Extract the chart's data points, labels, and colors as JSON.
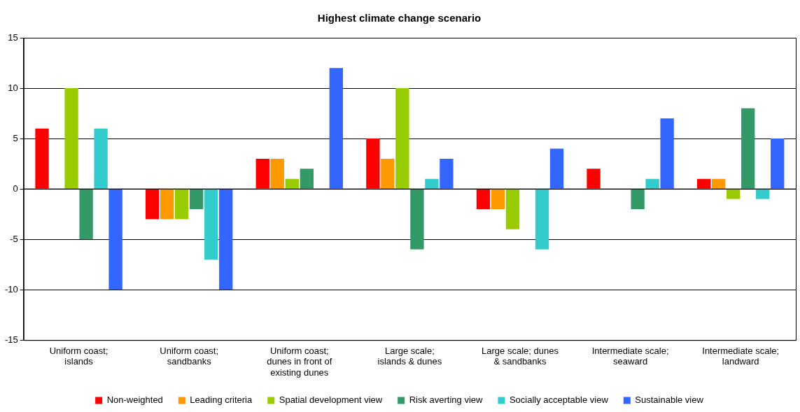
{
  "chart_data": {
    "type": "bar",
    "title": "Highest climate change scenario",
    "categories": [
      "Uniform coast; islands",
      "Uniform coast; sandbanks",
      "Uniform coast; dunes in front of existing dunes",
      "Large scale; islands & dunes",
      "Large scale; dunes & sandbanks",
      "Intermediate scale; seaward",
      "Intermediate scale; landward"
    ],
    "series": [
      {
        "name": "Non-weighted",
        "color": "#ff0000",
        "values": [
          6,
          -3,
          3,
          5,
          -2,
          2,
          1
        ]
      },
      {
        "name": "Leading criteria",
        "color": "#ff9900",
        "values": [
          0,
          -3,
          3,
          3,
          -2,
          0,
          1
        ]
      },
      {
        "name": "Spatial development view",
        "color": "#99cc00",
        "values": [
          10,
          -3,
          1,
          10,
          -4,
          0,
          -1
        ]
      },
      {
        "name": "Risk averting view",
        "color": "#339966",
        "values": [
          -5,
          -2,
          2,
          -6,
          0,
          -2,
          8
        ]
      },
      {
        "name": "Socially acceptable view",
        "color": "#33cccc",
        "values": [
          6,
          -7,
          0,
          1,
          -6,
          1,
          -1
        ]
      },
      {
        "name": "Sustainable view",
        "color": "#3366ff",
        "values": [
          -10,
          -10,
          12,
          3,
          4,
          7,
          5
        ]
      }
    ],
    "ylim": [
      -15,
      15
    ],
    "yticks": [
      -15,
      -10,
      -5,
      0,
      5,
      10,
      15
    ],
    "grid": "y",
    "legend": "bottom"
  }
}
